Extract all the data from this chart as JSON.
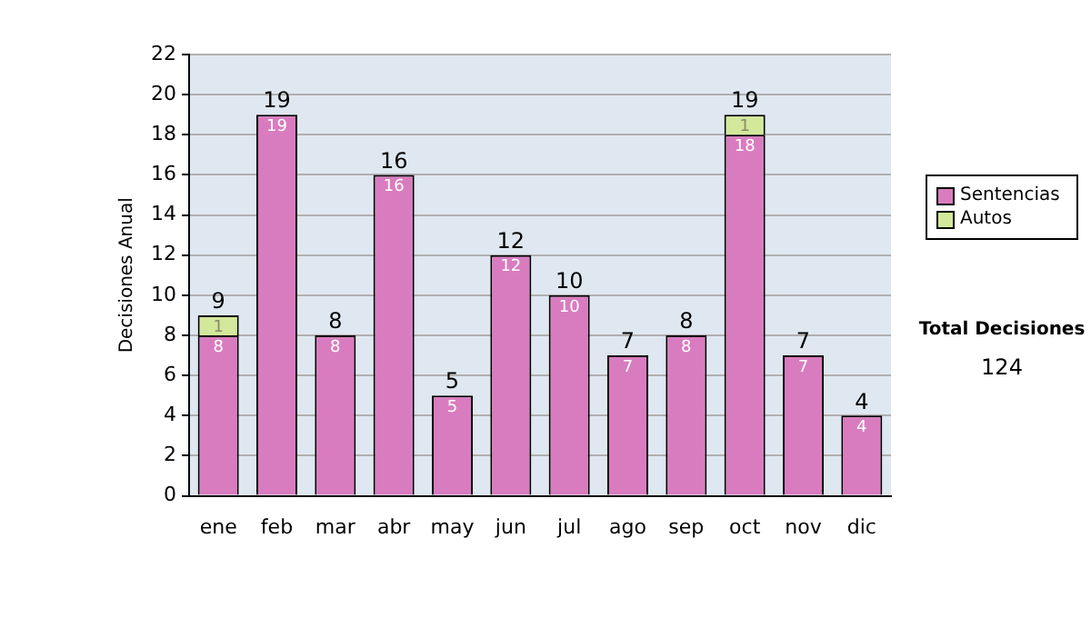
{
  "chart_data": {
    "type": "bar",
    "stacked": true,
    "ylabel": "Decisiones Anual",
    "categories": [
      "ene",
      "feb",
      "mar",
      "abr",
      "may",
      "jun",
      "jul",
      "ago",
      "sep",
      "oct",
      "nov",
      "dic"
    ],
    "series": [
      {
        "name": "Sentencias",
        "color": "#d97cbf",
        "values": [
          8,
          19,
          8,
          16,
          5,
          12,
          10,
          7,
          8,
          18,
          7,
          4
        ],
        "value_labels": [
          "8",
          "19",
          "8",
          "16",
          "5",
          "12",
          "10",
          "7",
          "8",
          "18",
          "7",
          "4"
        ]
      },
      {
        "name": "Autos",
        "color": "#d3e89a",
        "values": [
          1,
          0,
          0,
          0,
          0,
          0,
          0,
          0,
          0,
          1,
          0,
          0
        ],
        "value_labels": [
          "1",
          null,
          null,
          null,
          null,
          null,
          null,
          null,
          null,
          "1",
          null,
          null
        ]
      }
    ],
    "totals": [
      "9",
      "19",
      "8",
      "16",
      "5",
      "12",
      "10",
      "7",
      "8",
      "19",
      "7",
      "4"
    ],
    "ylim": [
      0,
      22
    ],
    "yticks": [
      0,
      2,
      4,
      6,
      8,
      10,
      12,
      14,
      16,
      18,
      20,
      22
    ],
    "grid": "y",
    "legend": "right",
    "annotations": [
      "Total Decisiones",
      "124"
    ]
  }
}
